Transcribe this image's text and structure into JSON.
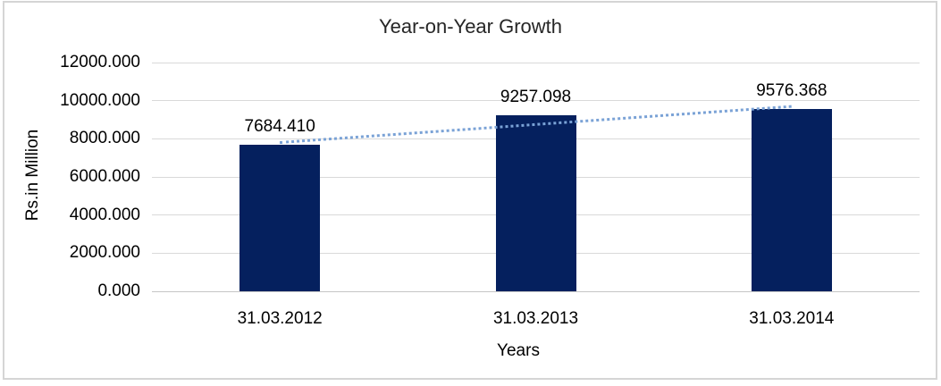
{
  "chart_data": {
    "type": "bar",
    "title": "Year-on-Year Growth",
    "categories": [
      "31.03.2012",
      "31.03.2013",
      "31.03.2014"
    ],
    "values": [
      7684.41,
      9257.098,
      9576.368
    ],
    "data_labels": [
      "7684.410",
      "9257.098",
      "9576.368"
    ],
    "xlabel": "Years",
    "ylabel": "Rs.in Million",
    "ylim": [
      0,
      12000
    ],
    "ytick_step": 2000,
    "ytick_labels": [
      "0.000",
      "2000.000",
      "4000.000",
      "6000.000",
      "8000.000",
      "10000.000",
      "12000.000"
    ],
    "grid": true,
    "legend": "none",
    "trendline": {
      "type": "linear",
      "style": "dotted",
      "color": "#7AA2D6"
    },
    "colors": {
      "bar": "#05205E",
      "gridline": "#D9D9D9",
      "axis_line": "#C6C6C6",
      "text": "#000000",
      "title_text": "#262626",
      "frame_border": "#D5D5D5",
      "background": "#FFFFFF"
    }
  }
}
